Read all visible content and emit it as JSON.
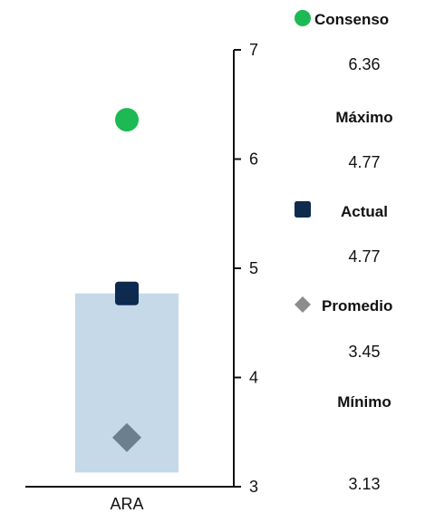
{
  "chart_data": {
    "type": "range-dot",
    "title": "",
    "xlabel": "",
    "ylabel": "",
    "categories": [
      "ARA"
    ],
    "ylim": [
      3,
      7
    ],
    "yticks": [
      3,
      4,
      5,
      6,
      7
    ],
    "grid": false,
    "y_axis_side": "right",
    "range": {
      "name": "Máximo-Mínimo",
      "low": 3.13,
      "high": 4.77,
      "color": "#c5d9e8"
    },
    "markers": [
      {
        "name": "Consenso",
        "value": 6.36,
        "shape": "circle",
        "color": "#1db954"
      },
      {
        "name": "Actual",
        "value": 4.77,
        "shape": "square",
        "color": "#0d2a4f"
      },
      {
        "name": "Promedio",
        "value": 3.45,
        "shape": "diamond",
        "color": "#6b7f8e"
      }
    ],
    "legend": {
      "placement": "right",
      "entries": [
        {
          "label": "Consenso",
          "value": "6.36",
          "icon": "circle",
          "color": "#1db954"
        },
        {
          "label": "Máximo",
          "value": "4.77",
          "icon": "none"
        },
        {
          "label": "Actual",
          "value": "4.77",
          "icon": "square",
          "color": "#0d2a4f"
        },
        {
          "label": "Promedio",
          "value": "3.45",
          "icon": "diamond",
          "color": "#8c8c8c"
        },
        {
          "label": "Mínimo",
          "value": "3.13",
          "icon": "none"
        }
      ]
    }
  }
}
